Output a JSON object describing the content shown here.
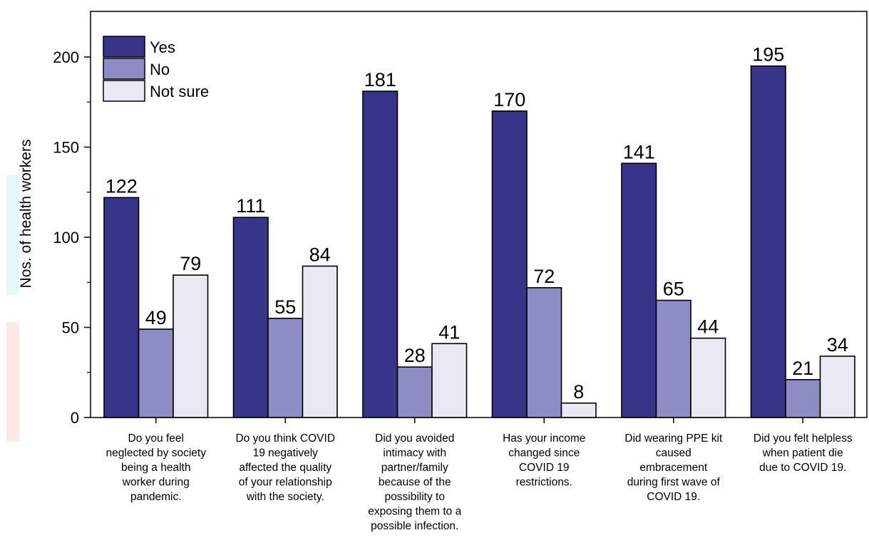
{
  "chart_data": {
    "type": "bar",
    "title": "",
    "xlabel": "",
    "ylabel": "Nos. of health workers",
    "ylim": [
      0,
      200
    ],
    "yticks": [
      0,
      50,
      100,
      150,
      200
    ],
    "grid": false,
    "legend_position": "top-left",
    "categories": [
      [
        "Do you feel",
        "neglected by society",
        "being a health",
        "worker during",
        "pandemic."
      ],
      [
        "Do you think COVID",
        "19 negatively",
        "affected the quality",
        "of your relationship",
        "with the society."
      ],
      [
        "Did you avoided",
        "intimacy with",
        "partner/family",
        "because of the",
        "possibility to",
        "exposing them to a",
        "possible infection."
      ],
      [
        "Has your income",
        "changed since",
        "COVID 19",
        "restrictions."
      ],
      [
        "Did wearing PPE kit",
        "caused",
        "embracement",
        "during first wave of",
        "COVID 19."
      ],
      [
        "Did you felt helpless",
        "when patient die",
        "due to COVID 19."
      ]
    ],
    "series": [
      {
        "name": "Yes",
        "color": "#38348a",
        "values": [
          122,
          111,
          181,
          170,
          141,
          195
        ]
      },
      {
        "name": "No",
        "color": "#8e8cc4",
        "values": [
          49,
          55,
          28,
          72,
          65,
          21
        ]
      },
      {
        "name": "Not sure",
        "color": "#e9e9f4",
        "values": [
          79,
          84,
          41,
          8,
          44,
          34
        ]
      }
    ]
  }
}
